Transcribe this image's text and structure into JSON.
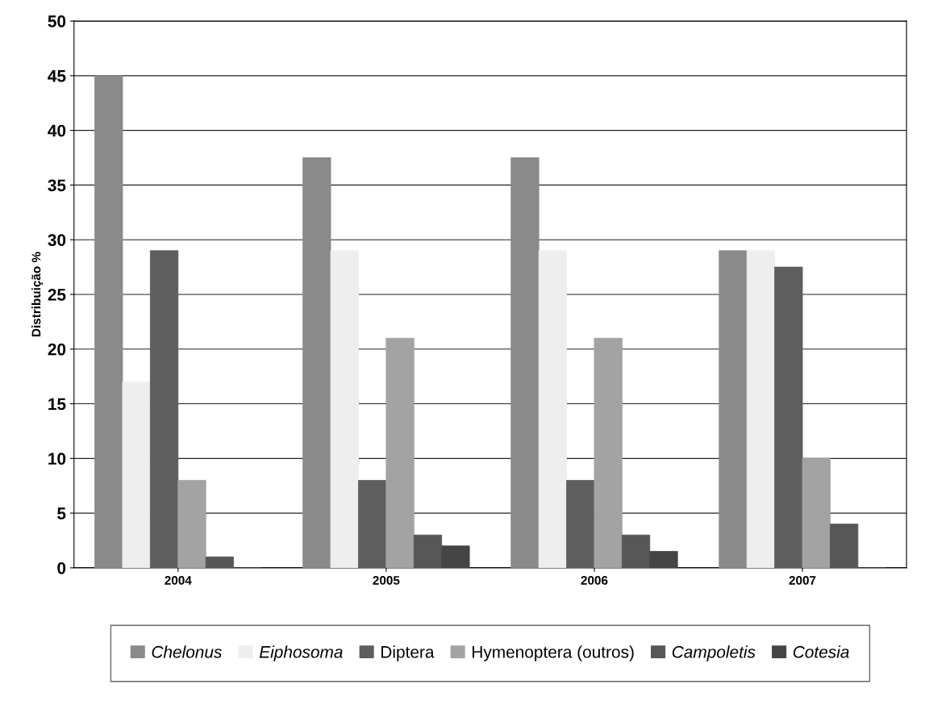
{
  "chart_data": {
    "type": "bar",
    "ylabel": "Distribuição %",
    "categories": [
      "2004",
      "2005",
      "2006",
      "2007"
    ],
    "series": [
      {
        "name": "Chelonus",
        "color": "#8a8a8a",
        "values": [
          45,
          37.5,
          37.5,
          29
        ]
      },
      {
        "name": "Eiphosoma",
        "color": "#eeeeee",
        "values": [
          17,
          29,
          29,
          29
        ]
      },
      {
        "name": "Diptera",
        "color": "#5e5e5e",
        "values": [
          29,
          8,
          8,
          27.5
        ]
      },
      {
        "name": "Hymenoptera (outros)",
        "color": "#a3a3a3",
        "values": [
          8,
          21,
          21,
          10
        ]
      },
      {
        "name": "Campoletis",
        "color": "#575757",
        "values": [
          1,
          3,
          3,
          4
        ]
      },
      {
        "name": "Cotesia",
        "color": "#454545",
        "values": [
          0,
          2,
          1.5,
          0
        ]
      }
    ],
    "ylim": [
      0,
      50
    ],
    "yticks": [
      0,
      5,
      10,
      15,
      20,
      25,
      30,
      35,
      40,
      45,
      50
    ],
    "grid": "y",
    "legend": "bottom"
  }
}
